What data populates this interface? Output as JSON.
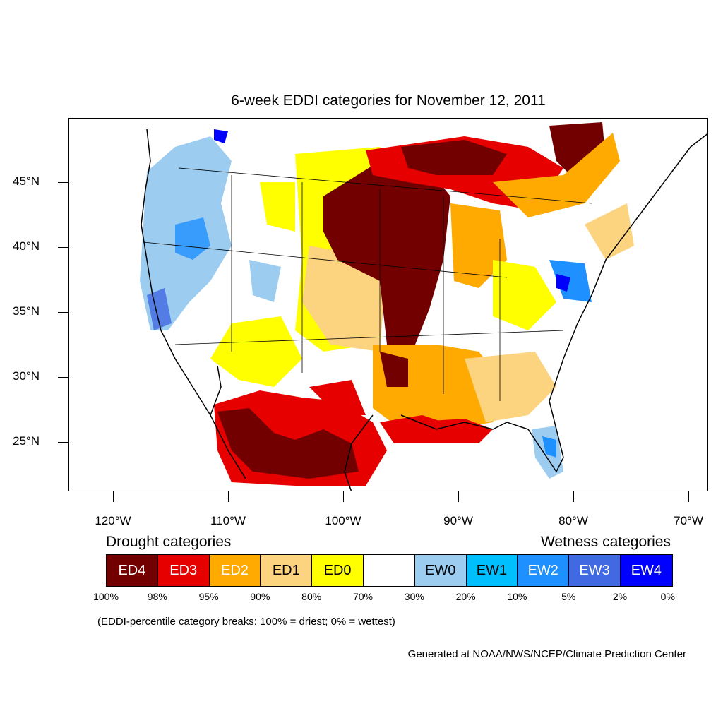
{
  "title": "6-week EDDI categories for November 12, 2011",
  "lat_axis": [
    "45°N",
    "40°N",
    "35°N",
    "30°N",
    "25°N"
  ],
  "lon_axis": [
    "120°W",
    "110°W",
    "100°W",
    "90°W",
    "80°W",
    "70°W"
  ],
  "legend": {
    "drought_heading": "Drought categories",
    "wetness_heading": "Wetness categories",
    "categories": [
      {
        "label": "ED4",
        "color": "#730000",
        "text_color": "#ffffff"
      },
      {
        "label": "ED3",
        "color": "#e60000",
        "text_color": "#ffffff"
      },
      {
        "label": "ED2",
        "color": "#ffaa00",
        "text_color": "#ffffff"
      },
      {
        "label": "ED1",
        "color": "#fcd37f",
        "text_color": "#000000"
      },
      {
        "label": "ED0",
        "color": "#ffff00",
        "text_color": "#000000"
      },
      {
        "label": "",
        "color": "#ffffff",
        "text_color": "#000000"
      },
      {
        "label": "EW0",
        "color": "#9ccdf0",
        "text_color": "#000000"
      },
      {
        "label": "EW1",
        "color": "#00bfff",
        "text_color": "#000000"
      },
      {
        "label": "EW2",
        "color": "#1e90ff",
        "text_color": "#ffffff"
      },
      {
        "label": "EW3",
        "color": "#4169e1",
        "text_color": "#ffffff"
      },
      {
        "label": "EW4",
        "color": "#0000ff",
        "text_color": "#ffffff"
      }
    ],
    "breaks": [
      "100%",
      "98%",
      "95%",
      "90%",
      "80%",
      "70%",
      "30%",
      "20%",
      "10%",
      "5%",
      "2%",
      "0%"
    ]
  },
  "note": "(EDDI-percentile category breaks: 100% = driest; 0% = wettest)",
  "credit": "Generated at NOAA/NWS/NCEP/Climate Prediction Center"
}
